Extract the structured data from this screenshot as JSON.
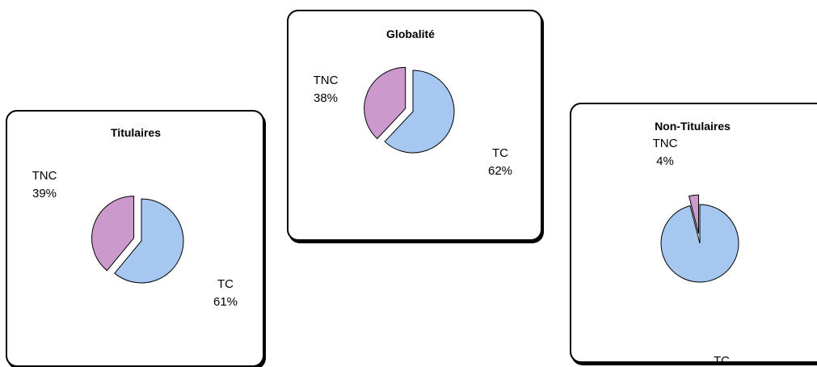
{
  "colors": {
    "tc": "#a6c8f0",
    "tnc": "#cc99cc",
    "stroke": "#000000"
  },
  "chart_data": [
    {
      "type": "pie",
      "title": "Titulaires",
      "slices": [
        {
          "key": "tnc",
          "name": "TNC",
          "value": 39,
          "label": "39%",
          "exploded": true
        },
        {
          "key": "tc",
          "name": "TC",
          "value": 61,
          "label": "61%",
          "exploded": false
        }
      ]
    },
    {
      "type": "pie",
      "title": "Globalité",
      "slices": [
        {
          "key": "tnc",
          "name": "TNC",
          "value": 38,
          "label": "38%",
          "exploded": true
        },
        {
          "key": "tc",
          "name": "TC",
          "value": 62,
          "label": "62%",
          "exploded": false
        }
      ]
    },
    {
      "type": "pie",
      "title": "Non-Titulaires",
      "slices": [
        {
          "key": "tnc",
          "name": "TNC",
          "value": 4,
          "label": "4%",
          "exploded": true
        },
        {
          "key": "tc",
          "name": "TC",
          "value": 96,
          "label": "",
          "exploded": false
        }
      ]
    }
  ]
}
